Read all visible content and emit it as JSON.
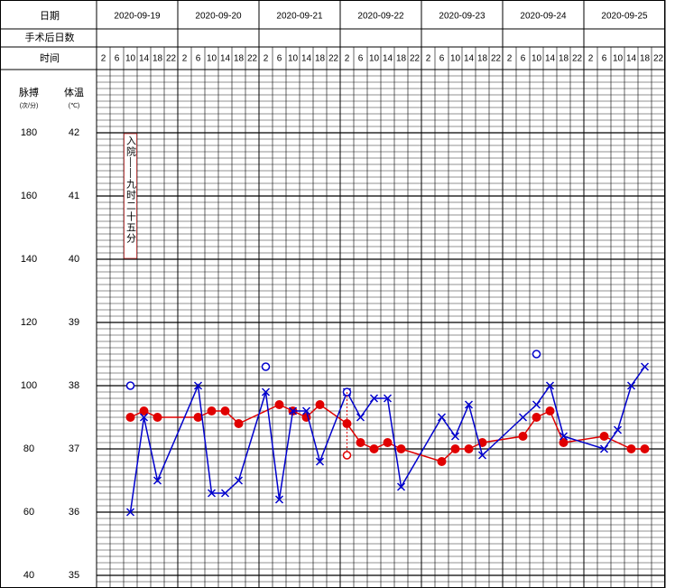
{
  "header": {
    "date_label": "日期",
    "postop_label": "手术后日数",
    "time_label": "时间"
  },
  "chart_data": {
    "type": "line",
    "categories": [
      "2020-09-19",
      "2020-09-20",
      "2020-09-21",
      "2020-09-22",
      "2020-09-23",
      "2020-09-24",
      "2020-09-25"
    ],
    "times": [
      "2",
      "6",
      "10",
      "14",
      "18",
      "22"
    ],
    "time_colors": [
      "#e00000",
      "#e00000",
      "#000000",
      "#000000",
      "#000000",
      "#e00000"
    ],
    "ylabel": "体温",
    "yunit": "(℃)",
    "ylim": [
      34.8,
      43
    ],
    "yticks": [
      35,
      36,
      37,
      38,
      39,
      40,
      41,
      42
    ],
    "y2label": "脉搏",
    "y2unit": "(次/分)",
    "y2lim": [
      36,
      200
    ],
    "y2ticks": [
      40,
      60,
      80,
      100,
      120,
      140,
      160,
      180
    ],
    "annotation": "入院——九时二十五分",
    "annotation_x": "2020-09-19 10",
    "annotation_color": "#c00000",
    "series": [
      {
        "color": "#e00000",
        "axis": "y2",
        "marker": "dot",
        "line": true,
        "x": [
          "2020-09-19 10",
          "2020-09-19 14",
          "2020-09-19 18",
          "2020-09-20 6",
          "2020-09-20 10",
          "2020-09-20 14",
          "2020-09-20 18",
          "2020-09-21 6",
          "2020-09-21 10",
          "2020-09-21 14",
          "2020-09-21 18",
          "2020-09-22 2",
          "2020-09-22 6",
          "2020-09-22 10",
          "2020-09-22 14",
          "2020-09-22 18",
          "2020-09-23 6",
          "2020-09-23 10",
          "2020-09-23 14",
          "2020-09-23 18",
          "2020-09-24 6",
          "2020-09-24 10",
          "2020-09-24 14",
          "2020-09-24 18",
          "2020-09-25 6",
          "2020-09-25 14",
          "2020-09-25 18"
        ],
        "values": [
          90,
          92,
          90,
          90,
          92,
          92,
          88,
          94,
          92,
          90,
          94,
          88,
          82,
          80,
          82,
          80,
          76,
          80,
          80,
          82,
          84,
          90,
          92,
          82,
          84,
          80,
          80
        ]
      },
      {
        "color": "#0000cc",
        "axis": "y",
        "marker": "cross",
        "line": true,
        "x": [
          "2020-09-19 10",
          "2020-09-19 14",
          "2020-09-19 18",
          "2020-09-20 6",
          "2020-09-20 10",
          "2020-09-20 14",
          "2020-09-20 18",
          "2020-09-21 2",
          "2020-09-21 6",
          "2020-09-21 10",
          "2020-09-21 14",
          "2020-09-21 18",
          "2020-09-22 2",
          "2020-09-22 6",
          "2020-09-22 10",
          "2020-09-22 14",
          "2020-09-22 18",
          "2020-09-23 6",
          "2020-09-23 10",
          "2020-09-23 14",
          "2020-09-23 18",
          "2020-09-24 6",
          "2020-09-24 10",
          "2020-09-24 14",
          "2020-09-24 18",
          "2020-09-25 6",
          "2020-09-25 10",
          "2020-09-25 14",
          "2020-09-25 18"
        ],
        "values": [
          36.0,
          37.5,
          36.5,
          38.0,
          36.3,
          36.3,
          36.5,
          37.9,
          36.2,
          37.6,
          37.6,
          36.8,
          37.9,
          37.5,
          37.8,
          37.8,
          36.4,
          37.5,
          37.2,
          37.7,
          36.9,
          37.5,
          37.7,
          38.0,
          37.2,
          37.0,
          37.3,
          38.0,
          38.3
        ]
      },
      {
        "color": "#0000cc",
        "axis": "y",
        "marker": "ring",
        "line": false,
        "x": [
          "2020-09-19 10",
          "2020-09-21 2",
          "2020-09-22 2",
          "2020-09-24 10"
        ],
        "values": [
          38.0,
          38.3,
          37.9,
          38.5
        ]
      },
      {
        "color": "#e00000",
        "axis": "y",
        "marker": "ring",
        "line": false,
        "x": [
          "2020-09-22 2"
        ],
        "values": [
          36.9
        ]
      }
    ],
    "cooling_link": true
  }
}
